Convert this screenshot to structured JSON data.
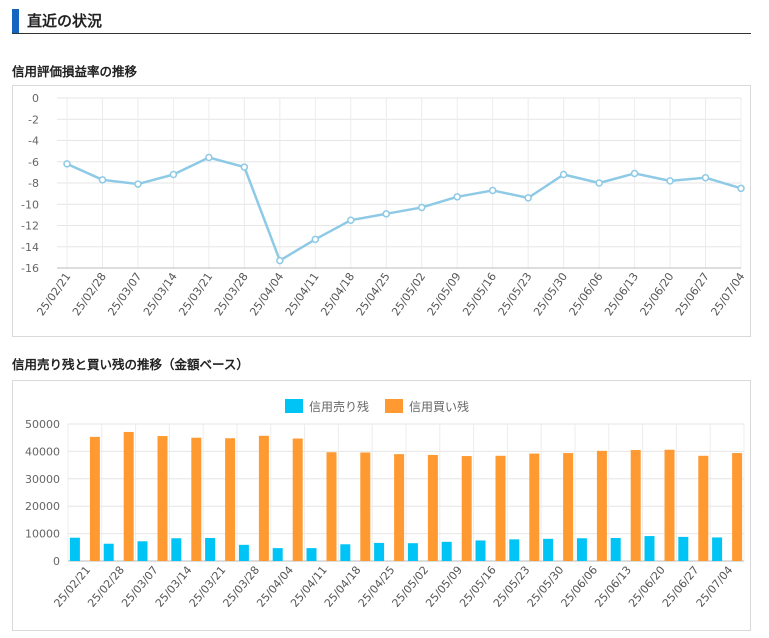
{
  "section": {
    "title": "直近の状況"
  },
  "chart1_title": "信用評価損益率の推移",
  "chart2_title": "信用売り残と買い残の推移（金額ベース）",
  "colors": {
    "accent": "#1565c0",
    "line": "#8ecae6",
    "sell": "#00c4f5",
    "buy": "#ff9a33"
  },
  "chart_data": [
    {
      "type": "line",
      "categories": [
        "25/02/21",
        "25/02/28",
        "25/03/07",
        "25/03/14",
        "25/03/21",
        "25/03/28",
        "25/04/04",
        "25/04/11",
        "25/04/18",
        "25/04/25",
        "25/05/02",
        "25/05/09",
        "25/05/16",
        "25/05/23",
        "25/05/30",
        "25/06/06",
        "25/06/13",
        "25/06/20",
        "25/06/27",
        "25/07/04"
      ],
      "values": [
        -6.2,
        -7.7,
        -8.1,
        -7.2,
        -5.6,
        -6.5,
        -15.3,
        -13.3,
        -11.5,
        -10.9,
        -10.3,
        -9.3,
        -8.7,
        -9.4,
        -7.2,
        -8.0,
        -7.1,
        -7.8,
        -7.5,
        -8.5
      ],
      "yticks": [
        0,
        -2,
        -4,
        -6,
        -8,
        -10,
        -12,
        -14,
        -16
      ],
      "ylim": [
        -16,
        0
      ],
      "grid": true
    },
    {
      "type": "bar",
      "categories": [
        "25/02/21",
        "25/02/28",
        "25/03/07",
        "25/03/14",
        "25/03/21",
        "25/03/28",
        "25/04/04",
        "25/04/11",
        "25/04/18",
        "25/04/25",
        "25/05/02",
        "25/05/09",
        "25/05/16",
        "25/05/23",
        "25/05/30",
        "25/06/06",
        "25/06/13",
        "25/06/20",
        "25/06/27",
        "25/07/04"
      ],
      "series": [
        {
          "name": "信用売り残",
          "values": [
            8500,
            6300,
            7200,
            8300,
            8400,
            5900,
            4700,
            4700,
            6100,
            6600,
            6500,
            7000,
            7500,
            7900,
            8100,
            8300,
            8400,
            9100,
            8800,
            8600
          ]
        },
        {
          "name": "信用買い残",
          "values": [
            45300,
            47100,
            45600,
            45000,
            44800,
            45700,
            44700,
            39700,
            39600,
            39000,
            38700,
            38300,
            38400,
            39200,
            39400,
            40200,
            40500,
            40600,
            38400,
            39400
          ]
        }
      ],
      "yticks": [
        0,
        10000,
        20000,
        30000,
        40000,
        50000
      ],
      "ylim": [
        0,
        50000
      ],
      "legend": "top-center",
      "grid": true
    }
  ]
}
